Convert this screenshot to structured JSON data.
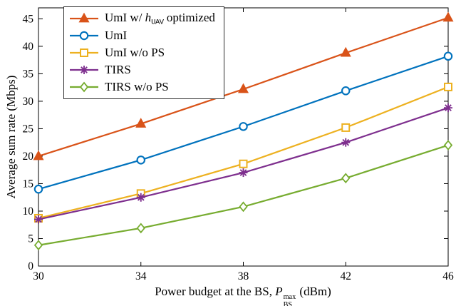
{
  "figure": {
    "background": "#ffffff",
    "axis_color": "#000000"
  },
  "chart_data": {
    "type": "line",
    "title": "",
    "xlabel_text": "Power budget at the BS, P_BS^max (dBm)",
    "xlabel_parts": [
      {
        "t": "Power budget at the BS, "
      },
      {
        "t": "P",
        "style": "italic"
      },
      {
        "sup": "max",
        "sub": "BS"
      },
      {
        "t": " (dBm)"
      }
    ],
    "ylabel": "Average sum rate (Mbps)",
    "xlim": [
      30,
      46
    ],
    "ylim": [
      0,
      47
    ],
    "xticks": [
      30,
      34,
      38,
      42,
      46
    ],
    "yticks": [
      0,
      5,
      10,
      15,
      20,
      25,
      30,
      35,
      40,
      45
    ],
    "grid": false,
    "legend_position": "top-left",
    "x": [
      30,
      34,
      38,
      42,
      46
    ],
    "series": [
      {
        "name": "UmI w/ h_UAV optimized",
        "label_parts": [
          {
            "t": "UmI w/ "
          },
          {
            "t": "h",
            "style": "italic"
          },
          {
            "t": "UAV",
            "style": "sub-mono"
          },
          {
            "t": " optimized"
          }
        ],
        "color": "#D95319",
        "marker": "triangle",
        "marker_filled": true,
        "values": [
          20.0,
          25.9,
          32.2,
          38.8,
          45.2
        ]
      },
      {
        "name": "UmI",
        "label_parts": [
          {
            "t": "UmI"
          }
        ],
        "color": "#0072BD",
        "marker": "circle",
        "marker_filled": false,
        "values": [
          14.0,
          19.3,
          25.4,
          31.9,
          38.2
        ]
      },
      {
        "name": "UmI w/o PS",
        "label_parts": [
          {
            "t": "UmI w/o PS"
          }
        ],
        "color": "#EDB120",
        "marker": "square",
        "marker_filled": false,
        "values": [
          8.7,
          13.2,
          18.6,
          25.2,
          32.6
        ]
      },
      {
        "name": "TIRS",
        "label_parts": [
          {
            "t": "TIRS"
          }
        ],
        "color": "#7E2F8E",
        "marker": "asterisk",
        "marker_filled": false,
        "values": [
          8.5,
          12.5,
          17.0,
          22.5,
          28.8
        ]
      },
      {
        "name": "TIRS w/o PS",
        "label_parts": [
          {
            "t": "TIRS w/o PS"
          }
        ],
        "color": "#77AC30",
        "marker": "diamond",
        "marker_filled": false,
        "values": [
          3.8,
          6.9,
          10.8,
          16.0,
          22.0
        ]
      }
    ]
  }
}
